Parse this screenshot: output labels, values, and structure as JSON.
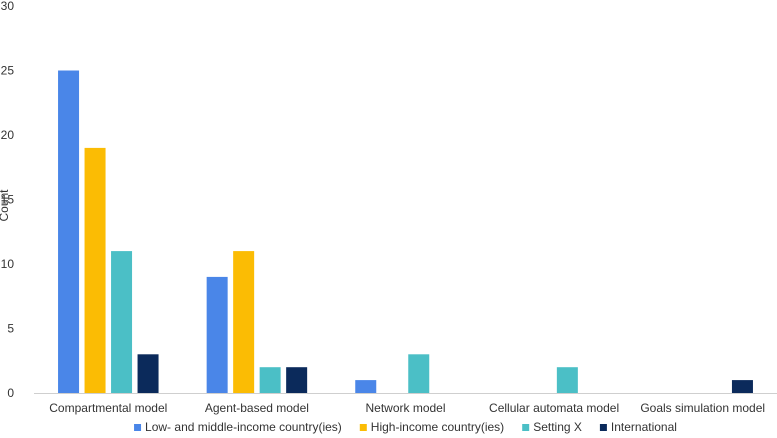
{
  "chart_data": {
    "type": "bar",
    "title": "",
    "xlabel": "",
    "ylabel": "Count",
    "ylim": [
      0,
      30
    ],
    "yticks": [
      0,
      5,
      10,
      15,
      20,
      25,
      30
    ],
    "grid": false,
    "legend_position": "bottom",
    "categories": [
      "Compartmental model",
      "Agent-based model",
      "Network model",
      "Cellular automata model",
      "Goals simulation model"
    ],
    "series": [
      {
        "name": "Low- and middle-income country(ies)",
        "color": "#4a86e8",
        "values": [
          25,
          9,
          1,
          0,
          0
        ]
      },
      {
        "name": "High-income country(ies)",
        "color": "#fbbc04",
        "values": [
          19,
          11,
          0,
          0,
          0
        ]
      },
      {
        "name": "Setting X",
        "color": "#4bbfc6",
        "values": [
          11,
          2,
          3,
          2,
          0
        ]
      },
      {
        "name": "International",
        "color": "#0b2a5b",
        "values": [
          3,
          2,
          0,
          0,
          1
        ]
      }
    ]
  }
}
